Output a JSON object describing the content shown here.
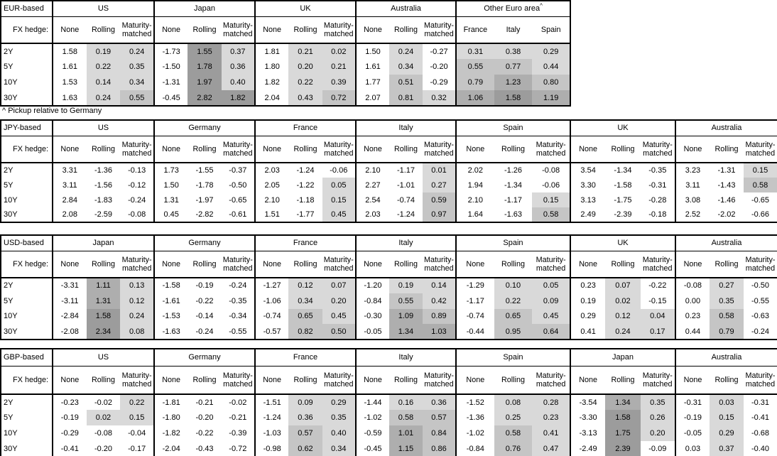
{
  "page": {
    "footnote": "^ Pickup relative to Germany",
    "fx_hedge_label": "FX hedge:",
    "maturity_labels": [
      "2Y",
      "5Y",
      "10Y",
      "30Y"
    ],
    "hedge_columns": [
      "None",
      "Rolling",
      "Maturity-matched"
    ]
  },
  "shading": {
    "thresholds": [
      0,
      0.5,
      1.0,
      1.5
    ],
    "palette": [
      "#ffffff",
      "#d9d9d9",
      "#c5c5c5",
      "#aeaeae",
      "#9c9c9c"
    ]
  },
  "tables": [
    {
      "base_label": "EUR-based",
      "groups": [
        {
          "name": "US",
          "shaded_columns": [
            1,
            2
          ],
          "rows": [
            [
              "1.58",
              "0.19",
              "0.24"
            ],
            [
              "1.61",
              "0.22",
              "0.35"
            ],
            [
              "1.53",
              "0.14",
              "0.34"
            ],
            [
              "1.63",
              "0.24",
              "0.55"
            ]
          ]
        },
        {
          "name": "Japan",
          "shaded_columns": [
            1,
            2
          ],
          "rows": [
            [
              "-1.73",
              "1.55",
              "0.37"
            ],
            [
              "-1.50",
              "1.78",
              "0.36"
            ],
            [
              "-1.31",
              "1.97",
              "0.40"
            ],
            [
              "-0.45",
              "2.82",
              "1.82"
            ]
          ]
        },
        {
          "name": "UK",
          "shaded_columns": [
            1,
            2
          ],
          "rows": [
            [
              "1.81",
              "0.21",
              "0.02"
            ],
            [
              "1.80",
              "0.20",
              "0.21"
            ],
            [
              "1.82",
              "0.22",
              "0.39"
            ],
            [
              "2.04",
              "0.43",
              "0.72"
            ]
          ]
        },
        {
          "name": "Australia",
          "shaded_columns": [
            1,
            2
          ],
          "rows": [
            [
              "1.50",
              "0.24",
              "-0.27"
            ],
            [
              "1.61",
              "0.34",
              "-0.20"
            ],
            [
              "1.77",
              "0.51",
              "-0.29"
            ],
            [
              "2.07",
              "0.81",
              "0.32"
            ]
          ]
        },
        {
          "name": "Other Euro area",
          "superscript": "^",
          "columns": [
            "France",
            "Italy",
            "Spain"
          ],
          "shaded_columns": [
            0,
            1,
            2
          ],
          "rows": [
            [
              "0.31",
              "0.38",
              "0.29"
            ],
            [
              "0.55",
              "0.77",
              "0.44"
            ],
            [
              "0.79",
              "1.23",
              "0.80"
            ],
            [
              "1.06",
              "1.58",
              "1.19"
            ]
          ]
        }
      ]
    },
    {
      "base_label": "JPY-based",
      "groups": [
        {
          "name": "US",
          "shaded_columns": [
            1,
            2
          ],
          "rows": [
            [
              "3.31",
              "-1.36",
              "-0.13"
            ],
            [
              "3.11",
              "-1.56",
              "-0.12"
            ],
            [
              "2.84",
              "-1.83",
              "-0.24"
            ],
            [
              "2.08",
              "-2.59",
              "-0.08"
            ]
          ]
        },
        {
          "name": "Germany",
          "shaded_columns": [
            1,
            2
          ],
          "rows": [
            [
              "1.73",
              "-1.55",
              "-0.37"
            ],
            [
              "1.50",
              "-1.78",
              "-0.50"
            ],
            [
              "1.31",
              "-1.97",
              "-0.65"
            ],
            [
              "0.45",
              "-2.82",
              "-0.61"
            ]
          ]
        },
        {
          "name": "France",
          "shaded_columns": [
            1,
            2
          ],
          "rows": [
            [
              "2.03",
              "-1.24",
              "-0.06"
            ],
            [
              "2.05",
              "-1.22",
              "0.05"
            ],
            [
              "2.10",
              "-1.18",
              "0.15"
            ],
            [
              "1.51",
              "-1.77",
              "0.45"
            ]
          ]
        },
        {
          "name": "Italy",
          "shaded_columns": [
            1,
            2
          ],
          "rows": [
            [
              "2.10",
              "-1.17",
              "0.01"
            ],
            [
              "2.27",
              "-1.01",
              "0.27"
            ],
            [
              "2.54",
              "-0.74",
              "0.59"
            ],
            [
              "2.03",
              "-1.24",
              "0.97"
            ]
          ]
        },
        {
          "name": "Spain",
          "shaded_columns": [
            1,
            2
          ],
          "rows": [
            [
              "2.02",
              "-1.26",
              "-0.08"
            ],
            [
              "1.94",
              "-1.34",
              "-0.06"
            ],
            [
              "2.10",
              "-1.17",
              "0.15"
            ],
            [
              "1.64",
              "-1.63",
              "0.58"
            ]
          ]
        },
        {
          "name": "UK",
          "shaded_columns": [
            1,
            2
          ],
          "rows": [
            [
              "3.54",
              "-1.34",
              "-0.35"
            ],
            [
              "3.30",
              "-1.58",
              "-0.31"
            ],
            [
              "3.13",
              "-1.75",
              "-0.28"
            ],
            [
              "2.49",
              "-2.39",
              "-0.18"
            ]
          ]
        },
        {
          "name": "Australia",
          "shaded_columns": [
            1,
            2
          ],
          "rows": [
            [
              "3.23",
              "-1.31",
              "0.15"
            ],
            [
              "3.11",
              "-1.43",
              "0.58"
            ],
            [
              "3.08",
              "-1.46",
              "-0.65"
            ],
            [
              "2.52",
              "-2.02",
              "-0.66"
            ]
          ]
        }
      ]
    },
    {
      "base_label": "USD-based",
      "groups": [
        {
          "name": "Japan",
          "shaded_columns": [
            1,
            2
          ],
          "rows": [
            [
              "-3.31",
              "1.11",
              "0.13"
            ],
            [
              "-3.11",
              "1.31",
              "0.12"
            ],
            [
              "-2.84",
              "1.58",
              "0.24"
            ],
            [
              "-2.08",
              "2.34",
              "0.08"
            ]
          ]
        },
        {
          "name": "Germany",
          "shaded_columns": [
            1,
            2
          ],
          "rows": [
            [
              "-1.58",
              "-0.19",
              "-0.24"
            ],
            [
              "-1.61",
              "-0.22",
              "-0.35"
            ],
            [
              "-1.53",
              "-0.14",
              "-0.34"
            ],
            [
              "-1.63",
              "-0.24",
              "-0.55"
            ]
          ]
        },
        {
          "name": "France",
          "shaded_columns": [
            1,
            2
          ],
          "rows": [
            [
              "-1.27",
              "0.12",
              "0.07"
            ],
            [
              "-1.06",
              "0.34",
              "0.20"
            ],
            [
              "-0.74",
              "0.65",
              "0.45"
            ],
            [
              "-0.57",
              "0.82",
              "0.50"
            ]
          ]
        },
        {
          "name": "Italy",
          "shaded_columns": [
            1,
            2
          ],
          "rows": [
            [
              "-1.20",
              "0.19",
              "0.14"
            ],
            [
              "-0.84",
              "0.55",
              "0.42"
            ],
            [
              "-0.30",
              "1.09",
              "0.89"
            ],
            [
              "-0.05",
              "1.34",
              "1.03"
            ]
          ]
        },
        {
          "name": "Spain",
          "shaded_columns": [
            1,
            2
          ],
          "rows": [
            [
              "-1.29",
              "0.10",
              "0.05"
            ],
            [
              "-1.17",
              "0.22",
              "0.09"
            ],
            [
              "-0.74",
              "0.65",
              "0.45"
            ],
            [
              "-0.44",
              "0.95",
              "0.64"
            ]
          ]
        },
        {
          "name": "UK",
          "shaded_columns": [
            1,
            2
          ],
          "rows": [
            [
              "0.23",
              "0.07",
              "-0.22"
            ],
            [
              "0.19",
              "0.02",
              "-0.15"
            ],
            [
              "0.29",
              "0.12",
              "0.04"
            ],
            [
              "0.41",
              "0.24",
              "0.17"
            ]
          ]
        },
        {
          "name": "Australia",
          "shaded_columns": [
            1,
            2
          ],
          "rows": [
            [
              "-0.08",
              "0.27",
              "-0.50"
            ],
            [
              "0.00",
              "0.35",
              "-0.55"
            ],
            [
              "0.23",
              "0.58",
              "-0.63"
            ],
            [
              "0.44",
              "0.79",
              "-0.24"
            ]
          ]
        }
      ]
    },
    {
      "base_label": "GBP-based",
      "groups": [
        {
          "name": "US",
          "shaded_columns": [
            1,
            2
          ],
          "rows": [
            [
              "-0.23",
              "-0.02",
              "0.22"
            ],
            [
              "-0.19",
              "0.02",
              "0.15"
            ],
            [
              "-0.29",
              "-0.08",
              "-0.04"
            ],
            [
              "-0.41",
              "-0.20",
              "-0.17"
            ]
          ]
        },
        {
          "name": "Germany",
          "shaded_columns": [
            1,
            2
          ],
          "rows": [
            [
              "-1.81",
              "-0.21",
              "-0.02"
            ],
            [
              "-1.80",
              "-0.20",
              "-0.21"
            ],
            [
              "-1.82",
              "-0.22",
              "-0.39"
            ],
            [
              "-2.04",
              "-0.43",
              "-0.72"
            ]
          ]
        },
        {
          "name": "France",
          "shaded_columns": [
            1,
            2
          ],
          "rows": [
            [
              "-1.51",
              "0.09",
              "0.29"
            ],
            [
              "-1.24",
              "0.36",
              "0.35"
            ],
            [
              "-1.03",
              "0.57",
              "0.40"
            ],
            [
              "-0.98",
              "0.62",
              "0.34"
            ]
          ]
        },
        {
          "name": "Italy",
          "shaded_columns": [
            1,
            2
          ],
          "rows": [
            [
              "-1.44",
              "0.16",
              "0.36"
            ],
            [
              "-1.02",
              "0.58",
              "0.57"
            ],
            [
              "-0.59",
              "1.01",
              "0.84"
            ],
            [
              "-0.45",
              "1.15",
              "0.86"
            ]
          ]
        },
        {
          "name": "Spain",
          "shaded_columns": [
            1,
            2
          ],
          "rows": [
            [
              "-1.52",
              "0.08",
              "0.28"
            ],
            [
              "-1.36",
              "0.25",
              "0.23"
            ],
            [
              "-1.02",
              "0.58",
              "0.41"
            ],
            [
              "-0.84",
              "0.76",
              "0.47"
            ]
          ]
        },
        {
          "name": "Japan",
          "shaded_columns": [
            1,
            2
          ],
          "rows": [
            [
              "-3.54",
              "1.34",
              "0.35"
            ],
            [
              "-3.30",
              "1.58",
              "0.26"
            ],
            [
              "-3.13",
              "1.75",
              "0.20"
            ],
            [
              "-2.49",
              "2.39",
              "-0.09"
            ]
          ]
        },
        {
          "name": "Australia",
          "shaded_columns": [
            1,
            2
          ],
          "rows": [
            [
              "-0.31",
              "0.03",
              "-0.31"
            ],
            [
              "-0.19",
              "0.15",
              "-0.41"
            ],
            [
              "-0.05",
              "0.29",
              "-0.68"
            ],
            [
              "0.03",
              "0.37",
              "-0.40"
            ]
          ]
        }
      ]
    }
  ]
}
